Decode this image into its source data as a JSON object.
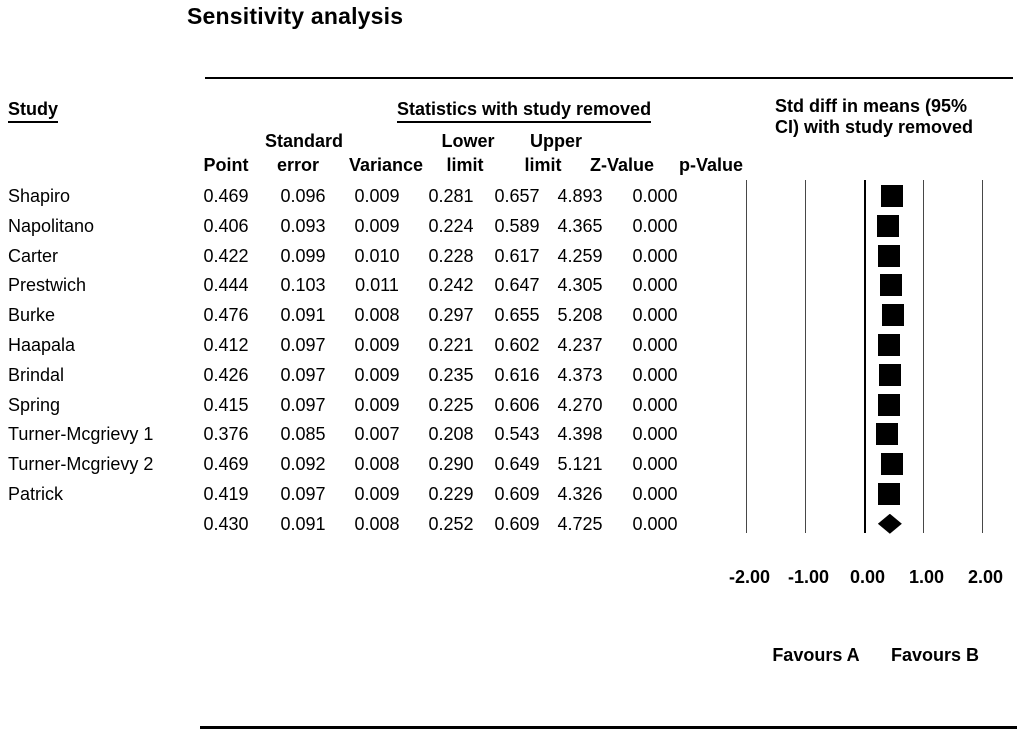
{
  "title": "Sensitivity analysis",
  "headers": {
    "study": "Study",
    "stats_group": "Statistics with study removed",
    "plot_line1": "Std diff in means (95%",
    "plot_line2": "CI) with study removed",
    "col_point": "Point",
    "col_se_1": "Standard",
    "col_se_2": "error",
    "col_variance": "Variance",
    "col_lower_1": "Lower",
    "col_lower_2": "limit",
    "col_upper_1": "Upper",
    "col_upper_2": "limit",
    "col_z": "Z-Value",
    "col_p": "p-Value"
  },
  "chart_data": {
    "type": "scatter",
    "subtype": "forest-plot-sensitivity-analysis",
    "title": "Sensitivity analysis",
    "effect_label": "Std diff in means (95% CI) with study removed",
    "x_tick_labels": [
      "-2.00",
      "-1.00",
      "0.00",
      "1.00",
      "2.00"
    ],
    "x_tick_values": [
      -2,
      -1,
      0,
      1,
      2
    ],
    "xlim": [
      -2,
      2
    ],
    "footer_left": "Favours A",
    "footer_right": "Favours B",
    "marker_color": "#000000",
    "rows": [
      {
        "study": "Shapiro",
        "point": "0.469",
        "se": "0.096",
        "variance": "0.009",
        "lower": "0.281",
        "upper": "0.657",
        "z": "4.893",
        "p": "0.000",
        "marker": "square"
      },
      {
        "study": "Napolitano",
        "point": "0.406",
        "se": "0.093",
        "variance": "0.009",
        "lower": "0.224",
        "upper": "0.589",
        "z": "4.365",
        "p": "0.000",
        "marker": "square"
      },
      {
        "study": "Carter",
        "point": "0.422",
        "se": "0.099",
        "variance": "0.010",
        "lower": "0.228",
        "upper": "0.617",
        "z": "4.259",
        "p": "0.000",
        "marker": "square"
      },
      {
        "study": "Prestwich",
        "point": "0.444",
        "se": "0.103",
        "variance": "0.011",
        "lower": "0.242",
        "upper": "0.647",
        "z": "4.305",
        "p": "0.000",
        "marker": "square"
      },
      {
        "study": "Burke",
        "point": "0.476",
        "se": "0.091",
        "variance": "0.008",
        "lower": "0.297",
        "upper": "0.655",
        "z": "5.208",
        "p": "0.000",
        "marker": "square"
      },
      {
        "study": "Haapala",
        "point": "0.412",
        "se": "0.097",
        "variance": "0.009",
        "lower": "0.221",
        "upper": "0.602",
        "z": "4.237",
        "p": "0.000",
        "marker": "square"
      },
      {
        "study": "Brindal",
        "point": "0.426",
        "se": "0.097",
        "variance": "0.009",
        "lower": "0.235",
        "upper": "0.616",
        "z": "4.373",
        "p": "0.000",
        "marker": "square"
      },
      {
        "study": "Spring",
        "point": "0.415",
        "se": "0.097",
        "variance": "0.009",
        "lower": "0.225",
        "upper": "0.606",
        "z": "4.270",
        "p": "0.000",
        "marker": "square"
      },
      {
        "study": "Turner-Mcgrievy 1",
        "point": "0.376",
        "se": "0.085",
        "variance": "0.007",
        "lower": "0.208",
        "upper": "0.543",
        "z": "4.398",
        "p": "0.000",
        "marker": "square"
      },
      {
        "study": "Turner-Mcgrievy 2",
        "point": "0.469",
        "se": "0.092",
        "variance": "0.008",
        "lower": "0.290",
        "upper": "0.649",
        "z": "5.121",
        "p": "0.000",
        "marker": "square"
      },
      {
        "study": "Patrick",
        "point": "0.419",
        "se": "0.097",
        "variance": "0.009",
        "lower": "0.229",
        "upper": "0.609",
        "z": "4.326",
        "p": "0.000",
        "marker": "square"
      },
      {
        "study": "",
        "point": "0.430",
        "se": "0.091",
        "variance": "0.008",
        "lower": "0.252",
        "upper": "0.609",
        "z": "4.725",
        "p": "0.000",
        "marker": "diamond"
      }
    ]
  }
}
